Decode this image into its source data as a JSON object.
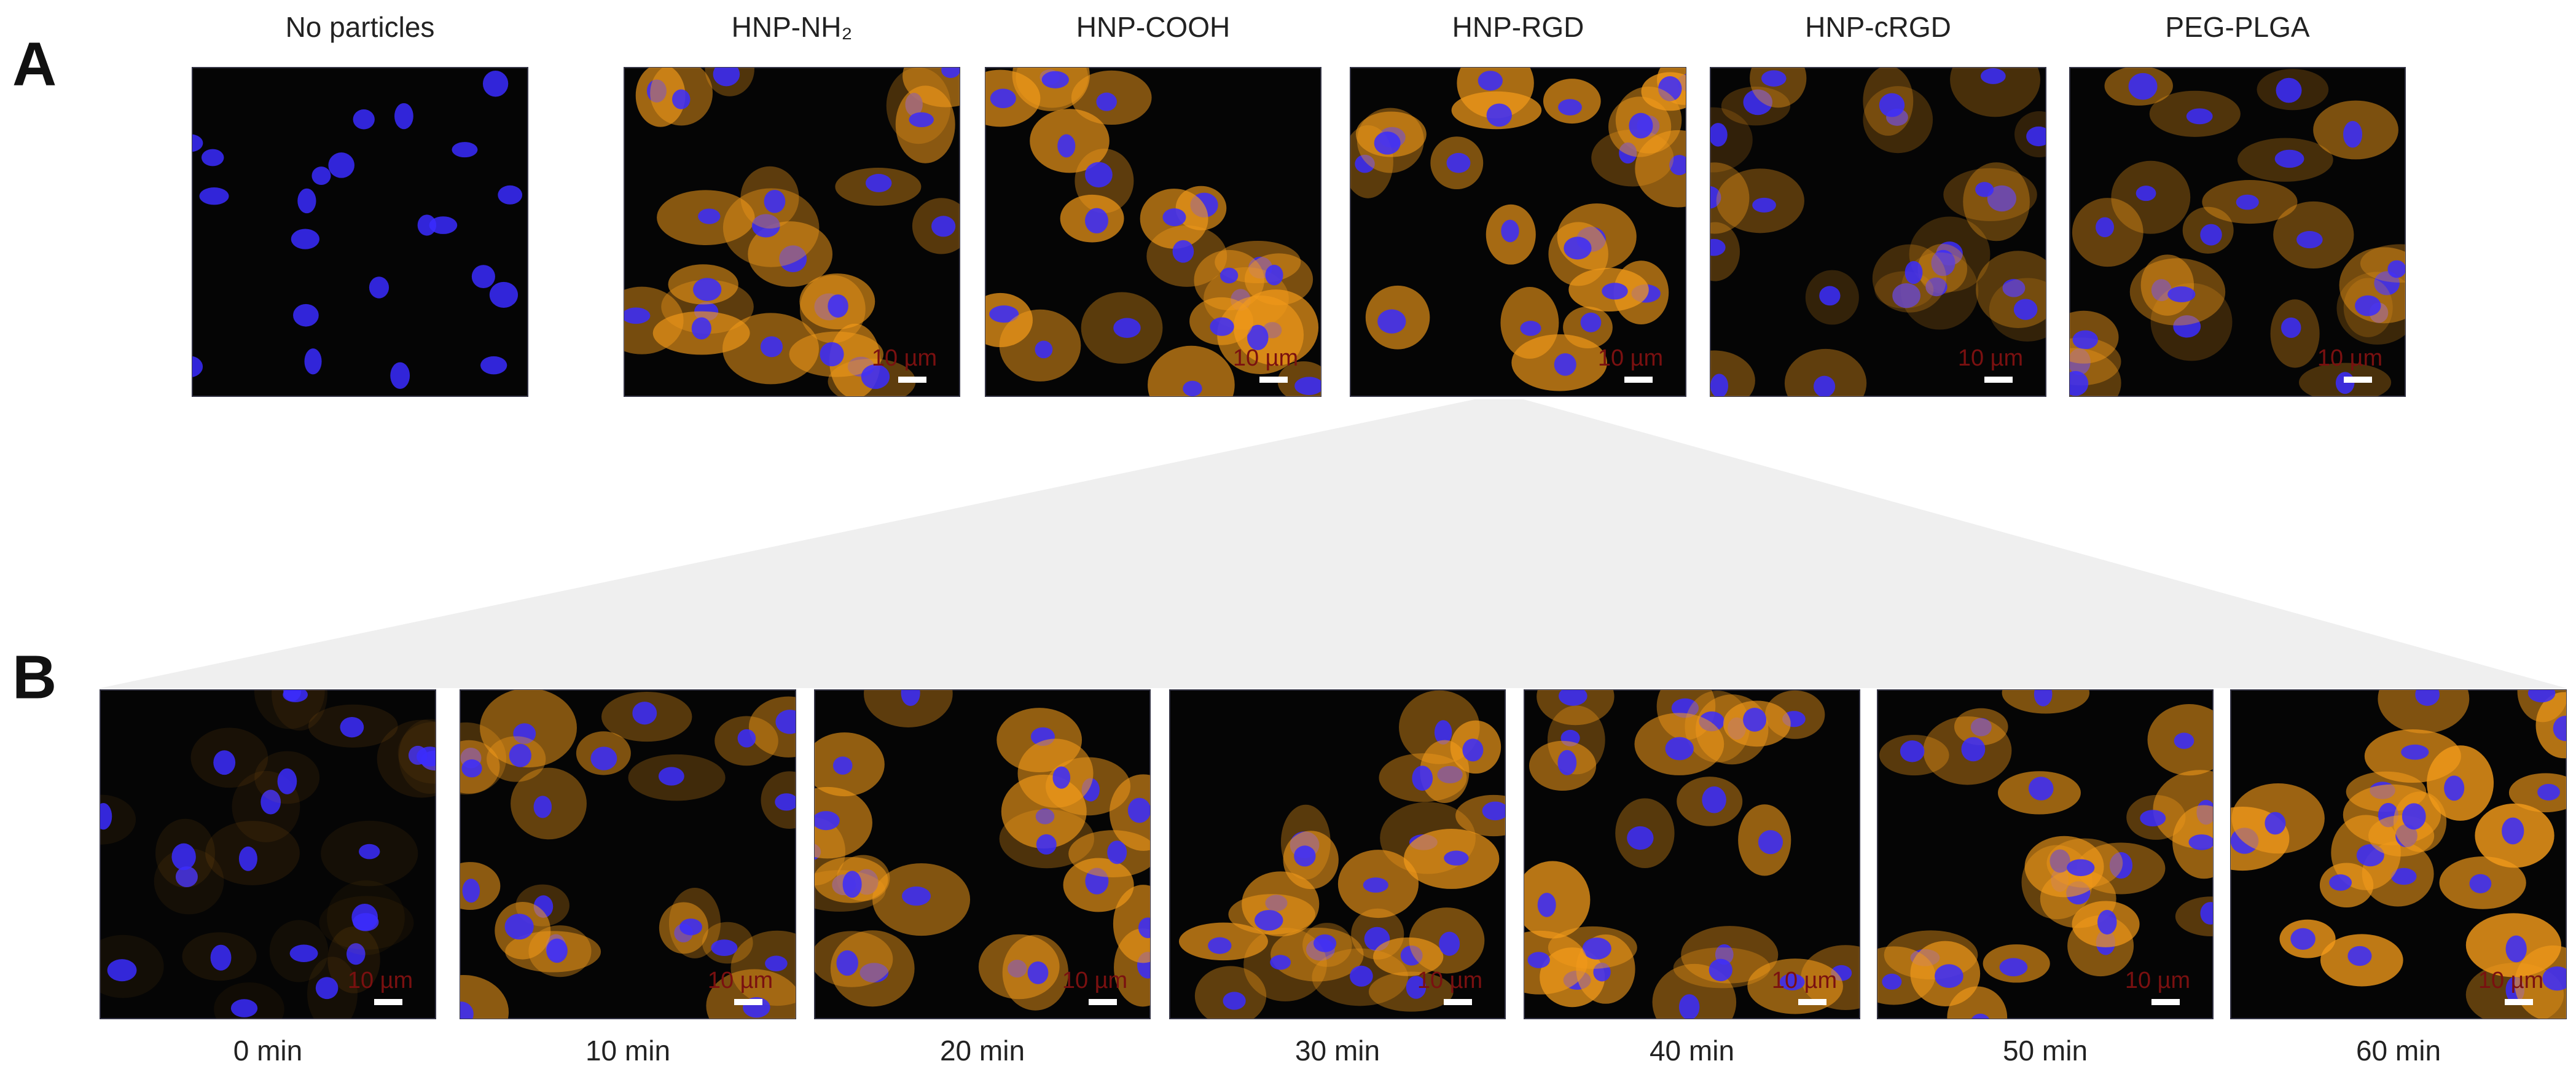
{
  "panels": [
    {
      "label": "A",
      "images": [
        {
          "title": "No particles"
        },
        {
          "title": "HNP-NH₂",
          "scale_bar": "10 µm"
        },
        {
          "title": "HNP-COOH",
          "scale_bar": "10 µm"
        },
        {
          "title": "HNP-RGD",
          "scale_bar": "10 µm"
        },
        {
          "title": "HNP-cRGD",
          "scale_bar": "10 µm"
        },
        {
          "title": "PEG-PLGA",
          "scale_bar": "10 µm"
        }
      ]
    },
    {
      "label": "B",
      "images": [
        {
          "title": "0 min",
          "scale_bar": "10 µm"
        },
        {
          "title": "10 min",
          "scale_bar": "10 µm"
        },
        {
          "title": "20 min",
          "scale_bar": "10 µm"
        },
        {
          "title": "30 min",
          "scale_bar": "10 µm"
        },
        {
          "title": "40 min",
          "scale_bar": "10 µm"
        },
        {
          "title": "50 min",
          "scale_bar": "10 µm"
        },
        {
          "title": "60 min",
          "scale_bar": "10 µm"
        }
      ]
    }
  ]
}
